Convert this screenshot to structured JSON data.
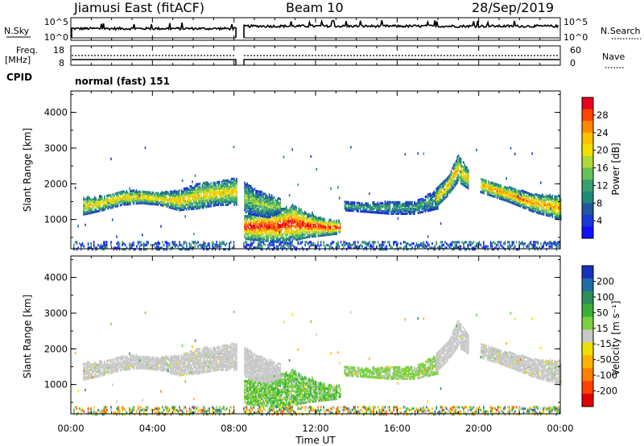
{
  "header": {
    "station": "Jiamusi East (fitACF)",
    "beam": "Beam 10",
    "date": "28/Sep/2019"
  },
  "nsky_panel": {
    "left_label": "N.Sky",
    "right_label": "N.Search",
    "left_ticks": [
      "10^5",
      "10^0"
    ],
    "right_ticks": [
      "10^5",
      "10^0"
    ]
  },
  "freq_panel": {
    "left_label_line1": "Freq.",
    "left_label_line2": "[MHz]",
    "right_label": "Nave",
    "left_ticks": [
      "18",
      "8"
    ],
    "right_ticks": [
      "60",
      "0"
    ]
  },
  "cpid": {
    "label": "CPID",
    "value": "normal (fast) 151"
  },
  "power_panel": {
    "ylabel": "Slant Range [km]",
    "yticks": [
      "4000",
      "3000",
      "2000",
      "1000"
    ],
    "ytick_values": [
      4000,
      3000,
      2000,
      1000
    ],
    "colorbar_label": "Power [dB]",
    "colorbar_ticks": [
      "28",
      "24",
      "20",
      "16",
      "12",
      "8",
      "4"
    ],
    "colorbar_colors": [
      "#e8001c",
      "#ff4400",
      "#ff8800",
      "#ffc000",
      "#f0e000",
      "#b0d838",
      "#66c254",
      "#3aa070",
      "#1e8a7a",
      "#2058a0",
      "#1838d8",
      "#1010ff"
    ]
  },
  "velocity_panel": {
    "ylabel": "Slant Range [km]",
    "yticks": [
      "4000",
      "3000",
      "2000",
      "1000"
    ],
    "ytick_values": [
      4000,
      3000,
      2000,
      1000
    ],
    "colorbar_label": "Velocity [m s⁻¹]",
    "colorbar_ticks": [
      "200",
      "100",
      "50",
      "15",
      "-15",
      "-50",
      "-100",
      "-200"
    ],
    "colorbar_colors": [
      "#1830c0",
      "#1e6ea8",
      "#2e8e5a",
      "#38b038",
      "#7ad040",
      "#c8c8c8",
      "#f0e000",
      "#ffb000",
      "#ff8000",
      "#ff4000",
      "#e00000"
    ]
  },
  "xaxis": {
    "label": "Time UT",
    "ticks": [
      "00:00",
      "04:00",
      "08:00",
      "12:00",
      "16:00",
      "20:00",
      "00:00"
    ]
  },
  "chart_data": {
    "type": "heatmap",
    "title": "Jiamusi East (fitACF)",
    "x_range_hours_ut": [
      0,
      24
    ],
    "y_range_km": [
      180,
      4600
    ],
    "data_gap_hours_ut": [
      8.15,
      8.45
    ],
    "ylim": [
      180,
      4600
    ],
    "power_scale_db": [
      0,
      30
    ],
    "velocity_scale_ms": [
      -250,
      250
    ],
    "power_regions": [
      {
        "name": "band-00-08",
        "t_start": 0.6,
        "t_end": 8.1,
        "r_low": [
          1180,
          1300,
          1450,
          1500,
          1450,
          1300,
          1350,
          1450,
          1450
        ],
        "r_high": [
          1650,
          1700,
          1850,
          1850,
          1800,
          1850,
          2050,
          2100,
          2200
        ],
        "peak_db": 21
      },
      {
        "name": "low-range-echo-08-13",
        "t_start": 8.5,
        "t_end": 13.2,
        "r_low": [
          500,
          450,
          420,
          450,
          550,
          600,
          650
        ],
        "r_high": [
          1150,
          1250,
          1300,
          1450,
          1200,
          1050,
          1000
        ],
        "peak_db": 29
      },
      {
        "name": "band-08-10",
        "t_start": 8.5,
        "t_end": 10.3,
        "r_low": [
          1250,
          1150,
          1100,
          1250
        ],
        "r_high": [
          2100,
          1850,
          1750,
          1600
        ],
        "peak_db": 16
      },
      {
        "name": "thin-band-13-18",
        "t_start": 13.4,
        "t_end": 18.0,
        "r_low": [
          1300,
          1250,
          1200,
          1200,
          1350
        ],
        "r_high": [
          1550,
          1500,
          1550,
          1550,
          1900
        ],
        "peak_db": 12
      },
      {
        "name": "rising-band-18-20",
        "t_start": 17.9,
        "t_end": 19.5,
        "r_low": [
          1400,
          1700,
          2100,
          1900
        ],
        "r_high": [
          1900,
          2200,
          2850,
          2400
        ],
        "peak_db": 22
      },
      {
        "name": "descending-band-20-24",
        "t_start": 20.1,
        "t_end": 24.0,
        "r_low": [
          1800,
          1550,
          1250,
          1050
        ],
        "r_high": [
          2200,
          1950,
          1750,
          1700
        ],
        "peak_db": 24
      }
    ],
    "velocity_regions": [
      {
        "name": "band-00-08",
        "t_start": 0.6,
        "t_end": 8.1,
        "dominant_velocity_ms": [
          -15,
          15
        ]
      },
      {
        "name": "low-range-echo-08-13",
        "t_start": 8.5,
        "t_end": 13.2,
        "dominant_velocity_ms": [
          15,
          100
        ]
      },
      {
        "name": "thin-band-13-18",
        "t_start": 13.4,
        "t_end": 18.0,
        "dominant_velocity_ms": [
          15,
          50
        ]
      },
      {
        "name": "descending-band-20-24",
        "t_start": 20.1,
        "t_end": 24.0,
        "dominant_velocity_ms": [
          -15,
          15
        ]
      }
    ]
  }
}
